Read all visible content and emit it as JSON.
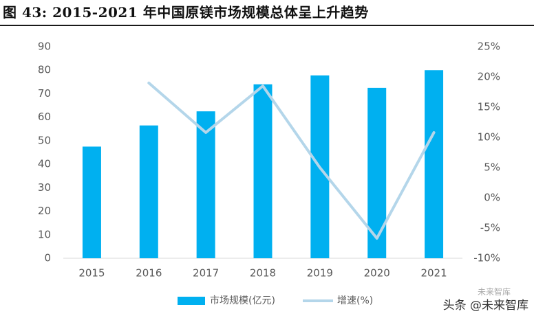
{
  "title": "图  43: 2015-2021 年中国原镁市场规模总体呈上升趋势",
  "chart_data": {
    "type": "bar",
    "categories": [
      "2015",
      "2016",
      "2017",
      "2018",
      "2019",
      "2020",
      "2021"
    ],
    "series": [
      {
        "name": "市场规模(亿元)",
        "type": "bar",
        "axis": "left",
        "values": [
          47.5,
          56.5,
          62.5,
          74,
          77.8,
          72.5,
          80
        ]
      },
      {
        "name": "增速(%)",
        "type": "line",
        "axis": "right",
        "values": [
          null,
          19,
          10.8,
          18.5,
          5,
          -6.7,
          10.8
        ]
      }
    ],
    "y_left": {
      "min": 0,
      "max": 90,
      "ticks": [
        "0",
        "10",
        "20",
        "30",
        "40",
        "50",
        "60",
        "70",
        "80",
        "90"
      ]
    },
    "y_right": {
      "min": -10,
      "max": 25,
      "ticks": [
        "-10%",
        "-5%",
        "0%",
        "5%",
        "10%",
        "15%",
        "20%",
        "25%"
      ]
    },
    "grid": false,
    "legend_position": "bottom",
    "colors": {
      "bar": "#00b0f0",
      "line": "#b4d6ea",
      "axis_text": "#595959"
    }
  },
  "watermark": {
    "main": "头条 @未来智库",
    "sub": "未来智库"
  }
}
